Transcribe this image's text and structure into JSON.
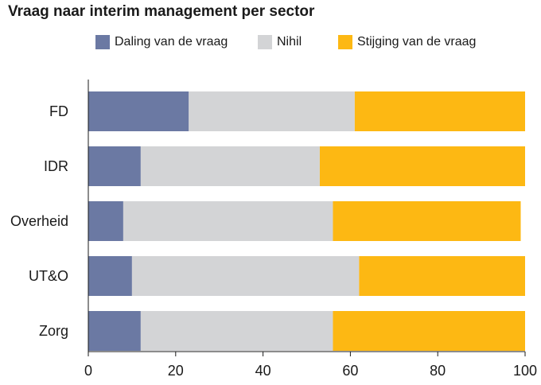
{
  "title": "Vraag naar interim management per sector",
  "chart_data": {
    "type": "bar",
    "orientation": "horizontal",
    "stacked": true,
    "title": "Vraag naar interim management per sector",
    "xlabel": "",
    "ylabel": "",
    "categories": [
      "FD",
      "IDR",
      "Overheid",
      "UT&O",
      "Zorg"
    ],
    "series": [
      {
        "name": "Daling van de vraag",
        "color": "#6b79a3",
        "values": [
          23,
          12,
          8,
          10,
          12
        ]
      },
      {
        "name": "Nihil",
        "color": "#d3d4d6",
        "values": [
          38,
          41,
          48,
          52,
          44
        ]
      },
      {
        "name": "Stijging van de vraag",
        "color": "#fdb813",
        "values": [
          39,
          47,
          43,
          38,
          44
        ]
      }
    ],
    "xlim": [
      0,
      100
    ],
    "xticks": [
      "0",
      "20",
      "40",
      "60",
      "80",
      "100"
    ],
    "grid": false,
    "legend_position": "top"
  }
}
